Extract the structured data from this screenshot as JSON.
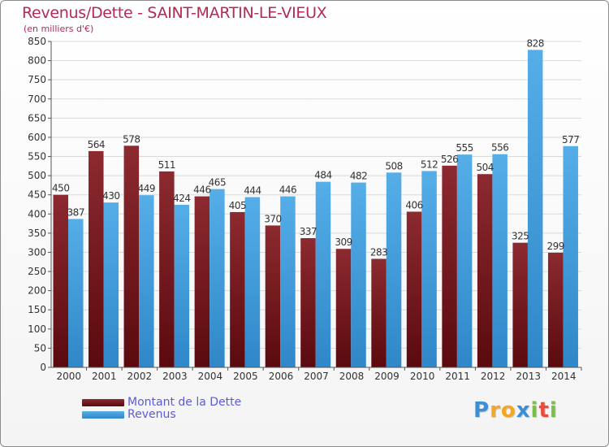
{
  "header": {
    "title": "Revenus/Dette - SAINT-MARTIN-LE-VIEUX",
    "subtitle": "(en milliers d'€)"
  },
  "chart_data": {
    "type": "bar",
    "title": "Revenus/Dette - SAINT-MARTIN-LE-VIEUX",
    "subtitle": "(en milliers d'€)",
    "categories": [
      "2000",
      "2001",
      "2002",
      "2003",
      "2004",
      "2005",
      "2006",
      "2007",
      "2008",
      "2009",
      "2010",
      "2011",
      "2012",
      "2013",
      "2014"
    ],
    "series": [
      {
        "name": "Montant de la Dette",
        "color": "#7a1a22",
        "values": [
          450,
          564,
          578,
          511,
          446,
          405,
          370,
          337,
          309,
          283,
          406,
          526,
          504,
          325,
          299
        ]
      },
      {
        "name": "Revenus",
        "color": "#4aa3e0",
        "values": [
          387,
          430,
          449,
          424,
          465,
          444,
          446,
          484,
          482,
          508,
          512,
          555,
          556,
          828,
          577
        ]
      }
    ],
    "ylim": [
      0,
      850
    ],
    "yticks": [
      0,
      50,
      100,
      150,
      200,
      250,
      300,
      350,
      400,
      450,
      500,
      550,
      600,
      650,
      700,
      750,
      800,
      850
    ],
    "grid": true,
    "legend": "bottom-left"
  },
  "legend": {
    "dette_label": "Montant de la Dette",
    "revenus_label": "Revenus"
  },
  "brand": {
    "letters": [
      "P",
      "r",
      "o",
      "x",
      "i",
      "t",
      "i"
    ],
    "colors": [
      "#3a8fd6",
      "#f5a623",
      "#f5a623",
      "#3a8fd6",
      "#7ac143",
      "#e94b3c",
      "#7ac143"
    ]
  }
}
